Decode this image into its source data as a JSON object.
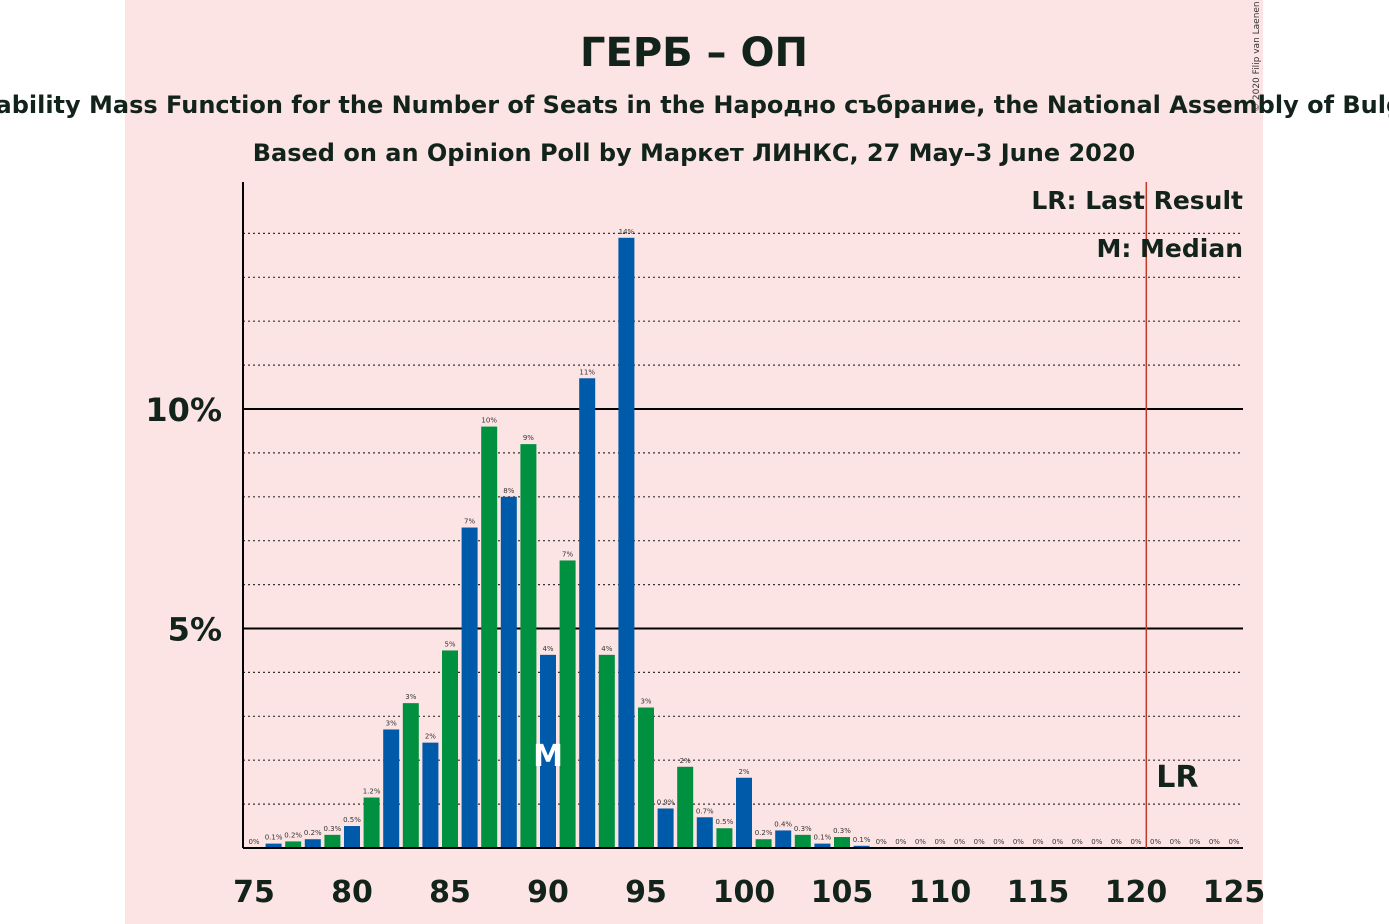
{
  "chart_data": {
    "type": "bar",
    "title": "ГЕРБ – ОП",
    "subtitle": "Probability Mass Function for the Number of Seats in the Народно събрание, the National Assembly of Bulgaria",
    "subtitle2": "Based on an Opinion Poll by Маркет ЛИНКС, 27 May–3 June 2020",
    "copyright": "© 2020 Filip van Laenen",
    "x": [
      75,
      76,
      77,
      78,
      79,
      80,
      81,
      82,
      83,
      84,
      85,
      86,
      87,
      88,
      89,
      90,
      91,
      92,
      93,
      94,
      95,
      96,
      97,
      98,
      99,
      100,
      101,
      102,
      103,
      104,
      105,
      106,
      107,
      108,
      109,
      110,
      111,
      112,
      113,
      114,
      115,
      116,
      117,
      118,
      119,
      120,
      121,
      122,
      123,
      124,
      125
    ],
    "values": [
      0.0,
      0.1,
      0.15,
      0.2,
      0.3,
      0.5,
      1.15,
      2.7,
      3.3,
      2.4,
      4.5,
      7.3,
      9.6,
      8.0,
      9.2,
      4.4,
      6.55,
      10.7,
      4.4,
      13.9,
      3.2,
      0.9,
      1.85,
      0.7,
      0.45,
      1.6,
      0.2,
      0.4,
      0.3,
      0.1,
      0.25,
      0.05,
      0,
      0,
      0,
      0,
      0,
      0,
      0,
      0,
      0,
      0,
      0,
      0,
      0,
      0,
      0,
      0,
      0,
      0,
      0
    ],
    "labels": [
      "0%",
      "0.1%",
      "0.2%",
      "0.2%",
      "0.3%",
      "0.5%",
      "1.2%",
      "3%",
      "3%",
      "2%",
      "5%",
      "7%",
      "10%",
      "8%",
      "9%",
      "4%",
      "7%",
      "11%",
      "4%",
      "14%",
      "3%",
      "0.9%",
      "2%",
      "0.7%",
      "0.5%",
      "2%",
      "0.2%",
      "0.4%",
      "0.3%",
      "0.1%",
      "0.3%",
      "0.1%",
      "0%",
      "0%",
      "0%",
      "0%",
      "0%",
      "0%",
      "0%",
      "0%",
      "0%",
      "0%",
      "0%",
      "0%",
      "0%",
      "0%",
      "0%",
      "0%",
      "0%",
      "0%",
      "0%"
    ],
    "colors": {
      "green": "#009140",
      "blue": "#005aaa",
      "background": "#fde4e4",
      "lr_line": "#c0392b"
    },
    "ylim": [
      0,
      15.2
    ],
    "yticks": [
      {
        "value": 5,
        "label": "5%"
      },
      {
        "value": 10,
        "label": "10%"
      }
    ],
    "minor_gridlines": [
      1,
      2,
      3,
      4,
      6,
      7,
      8,
      9,
      11,
      12,
      13,
      14
    ],
    "xticks": [
      75,
      80,
      85,
      90,
      95,
      100,
      105,
      110,
      115,
      120,
      125
    ],
    "median": {
      "seats": 90,
      "marker": "M"
    },
    "last_result": {
      "seats": 121,
      "marker": "LR"
    },
    "legend": {
      "lr": "LR: Last Result",
      "m": "M: Median",
      "placement": "top-right"
    }
  }
}
